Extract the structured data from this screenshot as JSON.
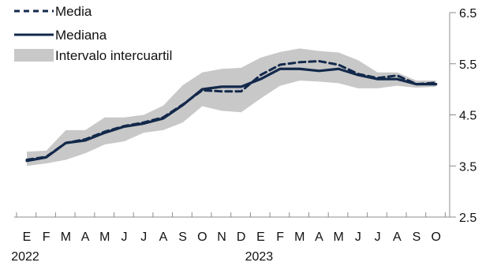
{
  "chart_data": {
    "type": "line",
    "title": "",
    "xlabel": "",
    "ylabel": "",
    "categories": [
      "E",
      "F",
      "M",
      "A",
      "M",
      "J",
      "J",
      "A",
      "S",
      "O",
      "N",
      "D",
      "E",
      "F",
      "M",
      "A",
      "M",
      "J",
      "J",
      "A",
      "S",
      "O"
    ],
    "years": [
      {
        "label": "2022",
        "index": 0
      },
      {
        "label": "2023",
        "index": 12
      }
    ],
    "y_axis": {
      "position": "right",
      "ylim": [
        2.5,
        6.5
      ],
      "ticks": [
        2.5,
        3.5,
        4.5,
        5.5,
        6.5
      ],
      "tick_labels": [
        "2.5",
        "3.5",
        "4.5",
        "5.5",
        "6.5"
      ]
    },
    "grid": false,
    "legend": {
      "placement": "top-left",
      "items": [
        {
          "name": "Media",
          "style": "dashed"
        },
        {
          "name": "Mediana",
          "style": "solid"
        },
        {
          "name": "Intervalo intercuartil",
          "style": "band"
        }
      ]
    },
    "series": [
      {
        "name": "Media",
        "style": "dashed",
        "color": "#13294b",
        "values": [
          3.62,
          3.68,
          3.95,
          4.02,
          4.17,
          4.28,
          4.35,
          4.45,
          4.7,
          4.98,
          4.96,
          4.96,
          5.28,
          5.48,
          5.53,
          5.55,
          5.48,
          5.3,
          5.22,
          5.27,
          5.1,
          5.13
        ]
      },
      {
        "name": "Mediana",
        "style": "solid",
        "color": "#13294b",
        "values": [
          3.6,
          3.67,
          3.95,
          4.0,
          4.15,
          4.27,
          4.33,
          4.43,
          4.69,
          5.0,
          5.05,
          5.05,
          5.2,
          5.4,
          5.4,
          5.36,
          5.4,
          5.28,
          5.2,
          5.2,
          5.1,
          5.1
        ]
      },
      {
        "name": "Intervalo intercuartil",
        "style": "band",
        "color": "#c8c8c8",
        "lower": [
          3.5,
          3.55,
          3.62,
          3.75,
          3.92,
          3.98,
          4.15,
          4.2,
          4.35,
          4.67,
          4.58,
          4.55,
          4.82,
          5.07,
          5.17,
          5.15,
          5.12,
          5.02,
          5.02,
          5.07,
          5.03,
          5.05
        ],
        "upper": [
          3.78,
          3.8,
          4.2,
          4.2,
          4.45,
          4.45,
          4.5,
          4.68,
          5.08,
          5.33,
          5.4,
          5.42,
          5.62,
          5.73,
          5.8,
          5.75,
          5.72,
          5.57,
          5.33,
          5.33,
          5.17,
          5.17
        ]
      }
    ]
  }
}
